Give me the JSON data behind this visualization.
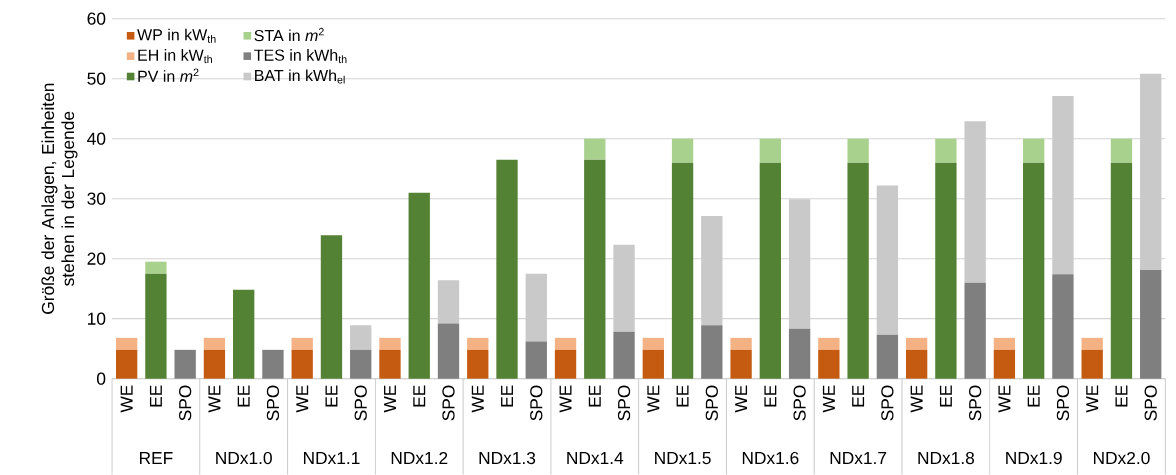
{
  "chart_data": {
    "type": "bar",
    "stacked": true,
    "ylabel": "Größe der Anlagen, Einheiten stehen in der Legende",
    "categories": [
      "WE",
      "EE",
      "SPO",
      "WE",
      "EE",
      "SPO",
      "WE",
      "EE",
      "SPO",
      "WE",
      "EE",
      "SPO",
      "WE",
      "EE",
      "SPO",
      "WE",
      "EE",
      "SPO",
      "WE",
      "EE",
      "SPO",
      "WE",
      "EE",
      "SPO",
      "WE",
      "EE",
      "SPO",
      "WE",
      "EE",
      "SPO",
      "WE",
      "EE",
      "SPO",
      "WE",
      "EE",
      "SPO"
    ],
    "annotations": [
      "REF",
      "NDx1.0",
      "NDx1.1",
      "NDx1.2",
      "NDx1.3",
      "NDx1.4",
      "NDx1.5",
      "NDx1.6",
      "NDx1.7",
      "NDx1.8",
      "NDx1.9",
      "NDx2.0"
    ],
    "series": [
      {
        "name": "WP in kW$_{th}$",
        "color": "#c55a11",
        "values": [
          4.8,
          null,
          null,
          4.8,
          null,
          null,
          4.8,
          null,
          null,
          4.8,
          null,
          null,
          4.8,
          null,
          null,
          4.8,
          null,
          null,
          4.8,
          null,
          null,
          4.8,
          null,
          null,
          4.8,
          null,
          null,
          4.8,
          null,
          null,
          4.8,
          null,
          null,
          4.8,
          null,
          null
        ]
      },
      {
        "name": "EH in kW$_{th}$",
        "color": "#f4b183",
        "values": [
          2.0,
          null,
          null,
          2.0,
          null,
          null,
          2.0,
          null,
          null,
          2.0,
          null,
          null,
          2.0,
          null,
          null,
          2.0,
          null,
          null,
          2.0,
          null,
          null,
          2.0,
          null,
          null,
          2.0,
          null,
          null,
          2.0,
          null,
          null,
          2.0,
          null,
          null,
          2.0,
          null,
          null
        ]
      },
      {
        "name": "PV in *m*$^{2}$",
        "color": "#548235",
        "values": [
          null,
          17.5,
          null,
          null,
          14.8,
          null,
          null,
          23.9,
          null,
          null,
          31.0,
          null,
          null,
          36.5,
          null,
          null,
          36.5,
          null,
          null,
          36.0,
          null,
          null,
          36.0,
          null,
          null,
          36.0,
          null,
          null,
          36.0,
          null,
          null,
          36.0,
          null,
          null,
          36.0,
          null
        ]
      },
      {
        "name": "STA in *m*$^{2}$",
        "color": "#a9d18e",
        "values": [
          null,
          2.0,
          null,
          null,
          null,
          null,
          null,
          null,
          null,
          null,
          null,
          null,
          null,
          null,
          null,
          null,
          3.5,
          null,
          null,
          4.0,
          null,
          null,
          4.0,
          null,
          null,
          4.0,
          null,
          null,
          4.0,
          null,
          null,
          4.0,
          null,
          null,
          4.0,
          null
        ]
      },
      {
        "name": "TES in kWh$_{th}$",
        "color": "#7f7f7f",
        "values": [
          null,
          null,
          4.8,
          null,
          null,
          4.8,
          null,
          null,
          4.8,
          null,
          null,
          9.2,
          null,
          null,
          6.2,
          null,
          null,
          7.8,
          null,
          null,
          8.9,
          null,
          null,
          8.3,
          null,
          null,
          7.3,
          null,
          null,
          16.0,
          null,
          null,
          17.4,
          null,
          null,
          18.1
        ]
      },
      {
        "name": "BAT in kWh$_{el}$",
        "color": "#c9c9c9",
        "values": [
          null,
          null,
          null,
          null,
          null,
          null,
          null,
          null,
          4.1,
          null,
          null,
          7.2,
          null,
          null,
          11.3,
          null,
          null,
          14.5,
          null,
          null,
          18.2,
          null,
          null,
          21.6,
          null,
          null,
          24.9,
          null,
          null,
          26.9,
          null,
          null,
          29.7,
          null,
          null,
          32.7
        ]
      }
    ],
    "ylim": [
      0,
      60
    ],
    "yticks": [
      0,
      10,
      20,
      30,
      40,
      50,
      60
    ],
    "grid": "y",
    "legend": "top left"
  }
}
